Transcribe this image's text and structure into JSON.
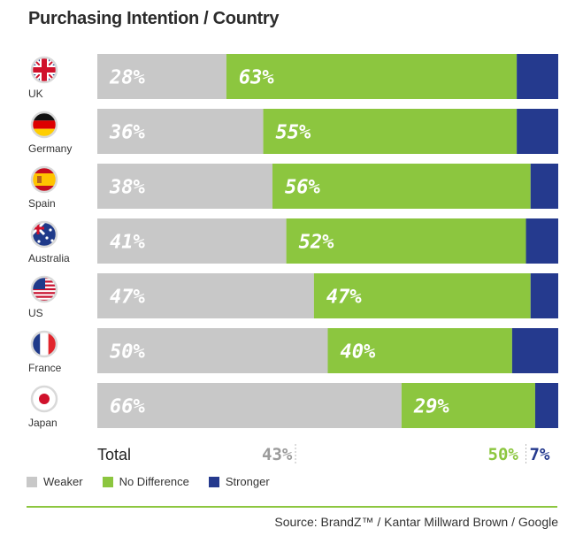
{
  "chart_data": {
    "type": "bar",
    "stacked": true,
    "orientation": "horizontal",
    "title": "Purchasing Intention / Country",
    "categories": [
      "UK",
      "Germany",
      "Spain",
      "Australia",
      "US",
      "France",
      "Japan"
    ],
    "series": [
      {
        "name": "Weaker",
        "values": [
          28,
          36,
          38,
          41,
          47,
          50,
          66
        ],
        "labels": [
          "28%",
          "36%",
          "38%",
          "41%",
          "47%",
          "50%",
          "66%"
        ]
      },
      {
        "name": "No Difference",
        "values": [
          63,
          55,
          56,
          52,
          47,
          40,
          29
        ],
        "labels": [
          "63%",
          "55%",
          "56%",
          "52%",
          "47%",
          "40%",
          "29%"
        ]
      },
      {
        "name": "Stronger",
        "values": [
          9,
          9,
          6,
          7,
          6,
          10,
          5
        ]
      }
    ],
    "total": {
      "label": "Total",
      "weaker": "43%",
      "no_difference": "50%",
      "stronger": "7%"
    },
    "xlim": [
      0,
      100
    ],
    "legend_position": "bottom-left",
    "grid": false
  },
  "colors": {
    "weaker": "#c8c8c8",
    "no_difference": "#8cc63f",
    "stronger": "#253a8e",
    "bar_label": "#ffffff",
    "total_weaker": "#9b9b9b",
    "total_no_difference": "#8cc63f",
    "total_stronger": "#253a8e"
  },
  "flags": [
    "uk-flag-icon",
    "germany-flag-icon",
    "spain-flag-icon",
    "australia-flag-icon",
    "us-flag-icon",
    "france-flag-icon",
    "japan-flag-icon"
  ],
  "legend": {
    "weaker": "Weaker",
    "no_difference": "No Difference",
    "stronger": "Stronger"
  },
  "source": "Source: BrandZ™ / Kantar Millward Brown / Google"
}
